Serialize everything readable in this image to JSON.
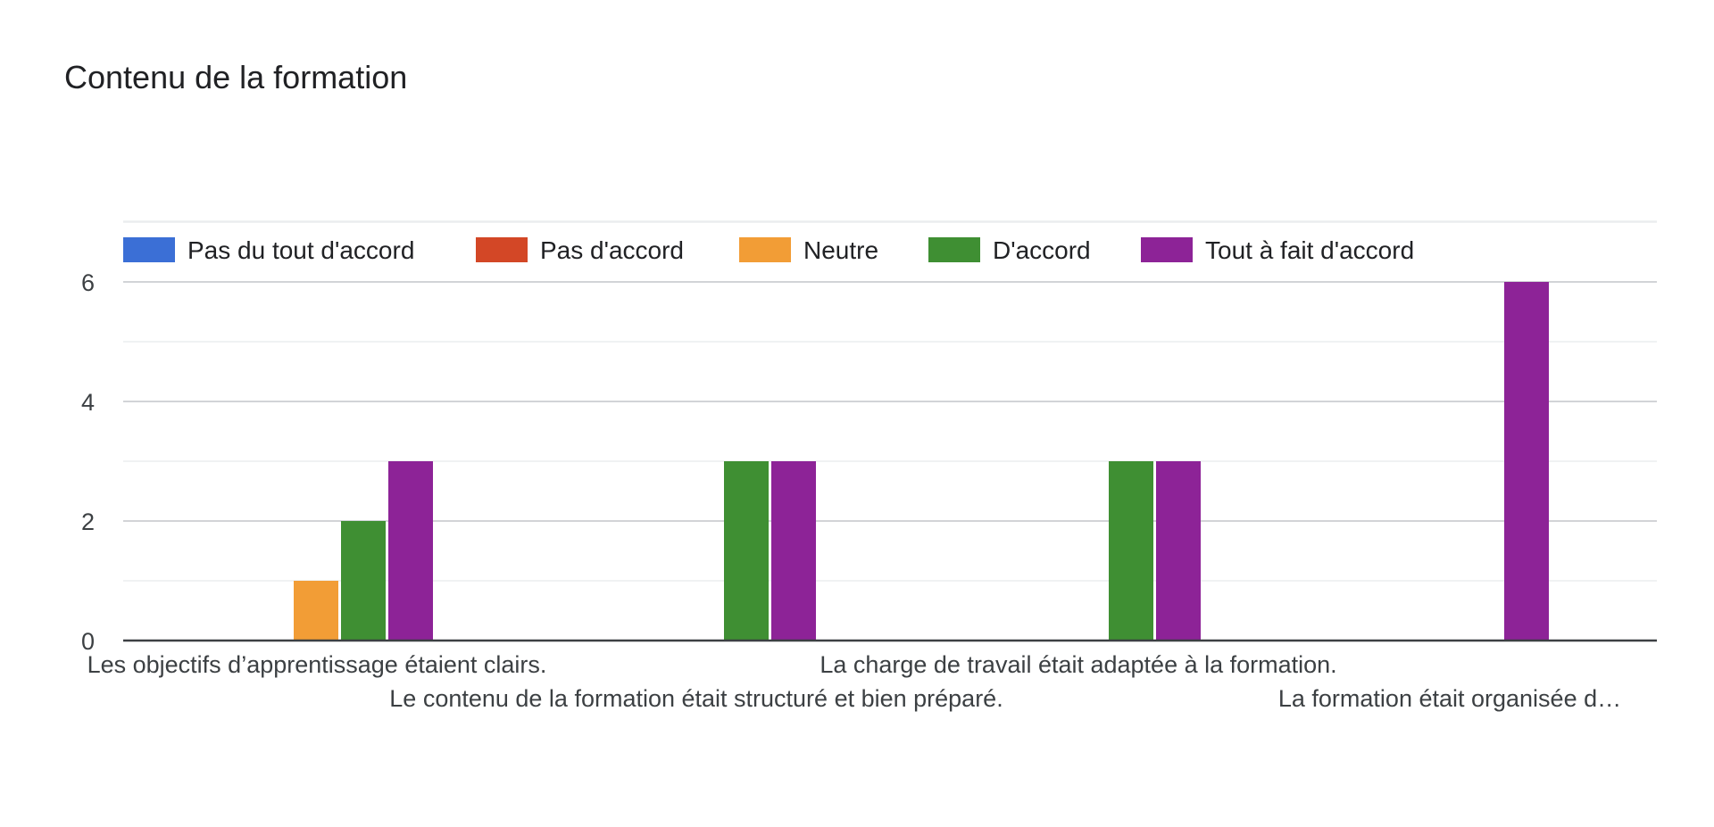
{
  "chart_data": {
    "type": "bar",
    "title": "Contenu de la formation",
    "categories": [
      "Les objectifs d’apprentissage étaient clairs.",
      "Le contenu de la formation était structuré et bien préparé.",
      "La charge de travail était adaptée à la formation.",
      "La formation était organisée d…"
    ],
    "series": [
      {
        "name": "Pas du tout d'accord",
        "color": "#3b6fd6",
        "values": [
          0,
          0,
          0,
          0
        ]
      },
      {
        "name": "Pas d'accord",
        "color": "#d34726",
        "values": [
          0,
          0,
          0,
          0
        ]
      },
      {
        "name": "Neutre",
        "color": "#f29d36",
        "values": [
          1,
          0,
          0,
          0
        ]
      },
      {
        "name": "D'accord",
        "color": "#3f8f33",
        "values": [
          2,
          3,
          3,
          0
        ]
      },
      {
        "name": "Tout à fait d'accord",
        "color": "#8d2397",
        "values": [
          3,
          3,
          3,
          6
        ]
      }
    ],
    "ylim": [
      0,
      7
    ],
    "yticks": [
      0,
      2,
      4,
      6
    ],
    "legend_position": "top-left",
    "grid": true
  }
}
